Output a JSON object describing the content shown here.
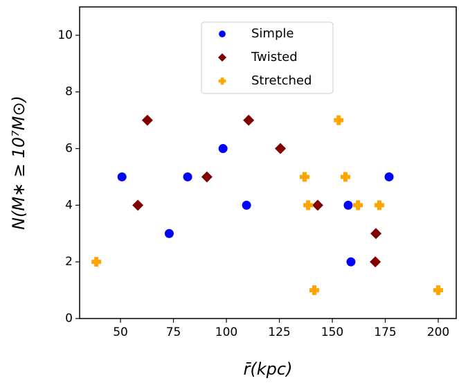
{
  "chart_data": {
    "type": "scatter",
    "x_label": "r̄(kpc)",
    "y_label": "N(M∗ ≥ 10⁷M⊙)",
    "xlim": [
      30.7,
      208.5
    ],
    "ylim": [
      0,
      11
    ],
    "xticks": [
      50,
      75,
      100,
      125,
      150,
      175,
      200
    ],
    "yticks": [
      0,
      2,
      4,
      6,
      8,
      10
    ],
    "legend": "upper center",
    "series": [
      {
        "name": "Simple",
        "color": "#0000ff",
        "marker": "circle",
        "x": [
          50.7,
          73,
          81.7,
          98.4,
          109.5,
          157.5,
          158.8,
          176.8
        ],
        "values": [
          5,
          3,
          5,
          6,
          4,
          4,
          2,
          5
        ]
      },
      {
        "name": "Twisted",
        "color": "#800000",
        "marker": "diamond",
        "x": [
          62.7,
          58.2,
          90.8,
          110.5,
          125.5,
          143.1,
          170.6,
          170.3
        ],
        "values": [
          7,
          4,
          5,
          7,
          6,
          4,
          3,
          2
        ]
      },
      {
        "name": "Stretched",
        "color": "#ffa500",
        "marker": "plus",
        "x": [
          38.6,
          136.9,
          138.6,
          141.5,
          153,
          156.2,
          162.1,
          172.2,
          200
        ],
        "values": [
          2,
          5,
          4,
          1,
          7,
          5,
          4,
          4,
          1
        ]
      }
    ]
  }
}
